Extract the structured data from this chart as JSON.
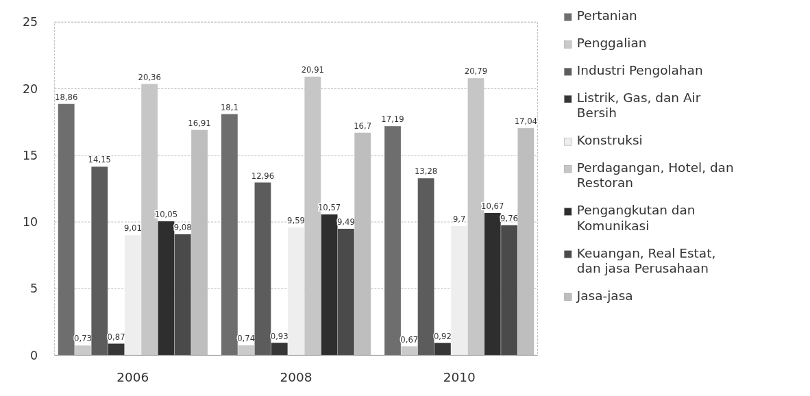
{
  "chart_data": {
    "type": "bar",
    "categories": [
      "2006",
      "2008",
      "2010"
    ],
    "ylim": [
      0,
      25
    ],
    "yticks": [
      0,
      5,
      10,
      15,
      20,
      25
    ],
    "grid": "y",
    "legend": "right",
    "series": [
      {
        "name": "Pertanian",
        "color": "#6e6e6e",
        "values": [
          18.86,
          18.1,
          17.19
        ],
        "value_labels": [
          "18,86",
          "18,1",
          "17,19"
        ]
      },
      {
        "name": "Penggalian",
        "color": "#cacaca",
        "values": [
          0.73,
          0.74,
          0.67
        ],
        "value_labels": [
          "0,73",
          "0,74",
          "0,67"
        ]
      },
      {
        "name": "Industri Pengolahan",
        "color": "#5c5c5c",
        "values": [
          14.15,
          12.96,
          13.28
        ],
        "value_labels": [
          "14,15",
          "12,96",
          "13,28"
        ]
      },
      {
        "name": "Listrik, Gas, dan Air Bersih",
        "color": "#363636",
        "values": [
          0.87,
          0.93,
          0.92
        ],
        "value_labels": [
          "0,87",
          "0,93",
          "0,92"
        ]
      },
      {
        "name": "Konstruksi",
        "color": "#eeeeee",
        "values": [
          9.01,
          9.59,
          9.7
        ],
        "value_labels": [
          "9,01",
          "9,59",
          "9,7"
        ]
      },
      {
        "name": "Perdagangan, Hotel, dan Restoran",
        "color": "#c6c6c6",
        "values": [
          20.36,
          20.91,
          20.79
        ],
        "value_labels": [
          "20,36",
          "20,91",
          "20,79"
        ]
      },
      {
        "name": "Pengangkutan dan Komunikasi",
        "color": "#2e2e2e",
        "values": [
          10.05,
          10.57,
          10.67
        ],
        "value_labels": [
          "10,05",
          "10,57",
          "10,67"
        ]
      },
      {
        "name": "Keuangan, Real Estat, dan jasa Perusahaan",
        "color": "#4a4a4a",
        "values": [
          9.08,
          9.49,
          9.76
        ],
        "value_labels": [
          "9,08",
          "9,49",
          "9,76"
        ]
      },
      {
        "name": "Jasa-jasa",
        "color": "#bebebe",
        "values": [
          16.91,
          16.7,
          17.04
        ],
        "value_labels": [
          "16,91",
          "16,7",
          "17,04"
        ]
      }
    ]
  }
}
